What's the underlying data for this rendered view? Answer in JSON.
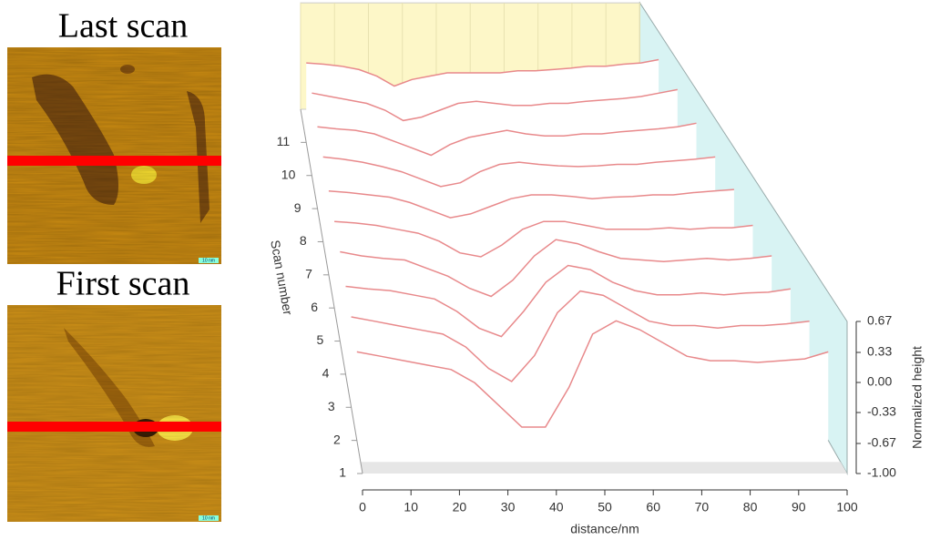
{
  "images": [
    {
      "title": "Last scan",
      "scale_label": "10 nm"
    },
    {
      "title": "First scan",
      "scale_label": "10 nm"
    }
  ],
  "chart_data": {
    "type": "waterfall",
    "x_label": "distance/nm",
    "depth_label": "Scan number",
    "z_label": "Normalized height",
    "color": "#e8898b",
    "x": [
      0,
      5,
      10,
      15,
      20,
      25,
      30,
      35,
      40,
      45,
      50,
      55,
      60,
      65,
      70,
      75,
      80,
      85,
      90,
      95,
      100
    ],
    "series": [
      {
        "scan": 2,
        "values": [
          0.0,
          -0.05,
          -0.1,
          -0.15,
          -0.2,
          -0.35,
          -0.6,
          -0.85,
          -0.85,
          -0.4,
          0.2,
          0.35,
          0.25,
          0.1,
          -0.05,
          -0.1,
          -0.1,
          -0.12,
          -0.1,
          -0.08,
          0.0
        ]
      },
      {
        "scan": 3,
        "values": [
          0.05,
          0.0,
          -0.05,
          -0.1,
          -0.15,
          -0.3,
          -0.55,
          -0.7,
          -0.4,
          0.1,
          0.35,
          0.3,
          0.15,
          0.0,
          -0.05,
          -0.05,
          -0.08,
          -0.05,
          -0.05,
          -0.03,
          0.0
        ]
      },
      {
        "scan": 4,
        "values": [
          0.05,
          0.02,
          0.0,
          -0.05,
          -0.1,
          -0.25,
          -0.45,
          -0.55,
          -0.25,
          0.1,
          0.3,
          0.25,
          0.1,
          0.0,
          -0.05,
          -0.05,
          -0.03,
          -0.05,
          -0.03,
          -0.02,
          0.02
        ]
      },
      {
        "scan": 5,
        "values": [
          0.1,
          0.05,
          0.02,
          0.0,
          -0.1,
          -0.2,
          -0.35,
          -0.45,
          -0.25,
          0.05,
          0.25,
          0.2,
          0.1,
          0.02,
          0.0,
          -0.02,
          0.0,
          0.02,
          0.0,
          0.02,
          0.05
        ]
      },
      {
        "scan": 6,
        "values": [
          0.1,
          0.08,
          0.05,
          0.0,
          -0.05,
          -0.15,
          -0.3,
          -0.35,
          -0.2,
          0.0,
          0.1,
          0.1,
          0.05,
          0.0,
          0.0,
          0.0,
          0.02,
          0.0,
          0.02,
          0.02,
          0.05
        ]
      },
      {
        "scan": 7,
        "values": [
          0.1,
          0.08,
          0.05,
          0.02,
          -0.05,
          -0.15,
          -0.25,
          -0.2,
          -0.1,
          0.0,
          0.05,
          0.05,
          0.03,
          0.0,
          0.02,
          0.03,
          0.05,
          0.05,
          0.08,
          0.1,
          0.12
        ]
      },
      {
        "scan": 8,
        "values": [
          0.15,
          0.12,
          0.08,
          0.02,
          -0.05,
          -0.15,
          -0.25,
          -0.2,
          -0.05,
          0.05,
          0.08,
          0.05,
          0.03,
          0.02,
          0.03,
          0.05,
          0.05,
          0.08,
          0.1,
          0.12,
          0.15
        ]
      },
      {
        "scan": 9,
        "values": [
          0.15,
          0.12,
          0.1,
          0.05,
          -0.05,
          -0.15,
          -0.25,
          -0.1,
          0.0,
          0.05,
          0.1,
          0.05,
          0.02,
          0.02,
          0.05,
          0.05,
          0.08,
          0.1,
          0.12,
          0.15,
          0.2
        ]
      },
      {
        "scan": 10,
        "values": [
          0.2,
          0.15,
          0.1,
          0.05,
          -0.05,
          -0.2,
          -0.15,
          -0.05,
          0.05,
          0.08,
          0.05,
          0.02,
          0.02,
          0.05,
          0.05,
          0.08,
          0.1,
          0.12,
          0.15,
          0.2,
          0.25
        ]
      },
      {
        "scan": 11,
        "values": [
          0.2,
          0.18,
          0.15,
          0.1,
          0.0,
          -0.15,
          -0.05,
          0.0,
          0.05,
          0.05,
          0.05,
          0.05,
          0.08,
          0.08,
          0.1,
          0.12,
          0.15,
          0.15,
          0.18,
          0.2,
          0.25
        ]
      }
    ],
    "xlim": [
      0,
      100
    ],
    "xticks": [
      0,
      10,
      20,
      30,
      40,
      50,
      60,
      70,
      80,
      90,
      100
    ],
    "depth_lim": [
      1,
      12
    ],
    "depth_ticks": [
      1,
      2,
      3,
      4,
      5,
      6,
      7,
      8,
      9,
      10,
      11
    ],
    "zlim": [
      -1,
      0.67
    ],
    "zticks": [
      {
        "value": -1,
        "label": "-1.00"
      },
      {
        "value": -0.67,
        "label": "-0.67"
      },
      {
        "value": -0.33,
        "label": "-0.33"
      },
      {
        "value": 0,
        "label": "0.00"
      },
      {
        "value": 0.33,
        "label": "0.33"
      },
      {
        "value": 0.67,
        "label": "0.67"
      }
    ]
  }
}
